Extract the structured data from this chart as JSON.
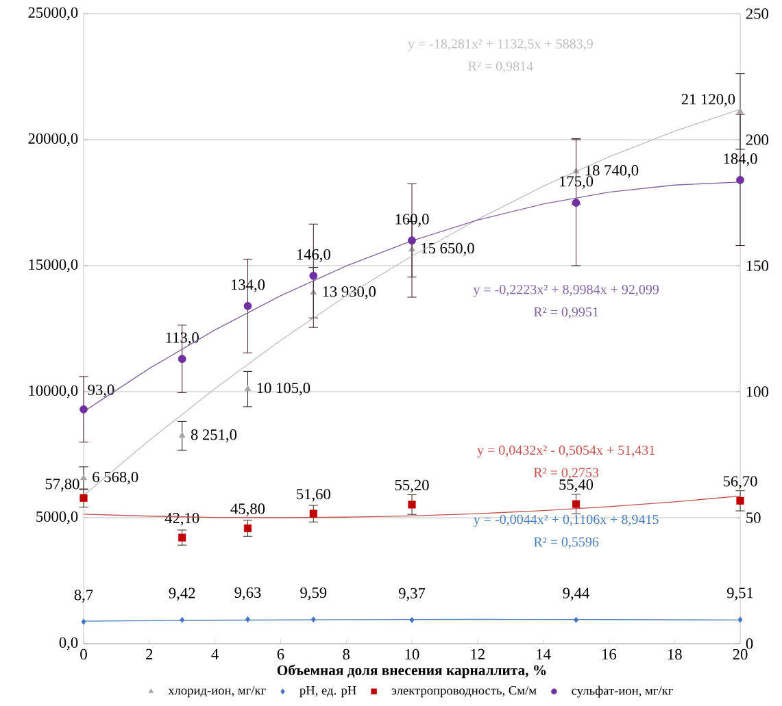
{
  "chart_data": {
    "type": "scatter",
    "xlabel": "Объемная доля внесения карналлита, %",
    "xlim": [
      0,
      20
    ],
    "xticks": [
      0,
      2,
      4,
      6,
      8,
      10,
      12,
      14,
      16,
      18,
      20
    ],
    "ylim": [
      0,
      25000
    ],
    "yticks": [
      {
        "value": 0,
        "label": "0,0"
      },
      {
        "value": 5000,
        "label": "5000,0"
      },
      {
        "value": 10000,
        "label": "10000,0"
      },
      {
        "value": 15000,
        "label": "15000,0"
      },
      {
        "value": 20000,
        "label": "20000,0"
      },
      {
        "value": 25000,
        "label": "25000,0"
      }
    ],
    "y2lim": [
      0,
      250
    ],
    "y2ticks": [
      0,
      50,
      100,
      150,
      200,
      250
    ],
    "grid": "y",
    "legend": "bottom",
    "series": [
      {
        "name": "хлорид-ион, мг/кг",
        "color": "#a5a5a5",
        "marker": "triangle",
        "x": [
          0,
          3,
          5,
          7,
          10,
          15,
          20
        ],
        "values": [
          6568,
          8251,
          10105,
          13930,
          15650,
          18740,
          21120
        ],
        "errors": [
          450,
          570,
          700,
          1000,
          1100,
          1300,
          1500
        ],
        "value_labels": [
          "6 568,0",
          "8 251,0",
          "10 105,0",
          "13 930,0",
          "15 650,0",
          "18 740,0",
          "21 120,0"
        ]
      },
      {
        "name": "pH, ед. pH",
        "color": "#4472c4",
        "marker": "diamond",
        "axis": "y2",
        "x": [
          0,
          3,
          5,
          7,
          10,
          15,
          20
        ],
        "values": [
          8.7,
          9.42,
          9.63,
          9.59,
          9.37,
          9.44,
          9.51
        ],
        "value_labels": [
          "8,7",
          "9,42",
          "9,63",
          "9,59",
          "9,37",
          "9,44",
          "9,51"
        ]
      },
      {
        "name": "электропроводность, См/м",
        "color": "#c00000",
        "marker": "square",
        "axis": "y2",
        "x": [
          0,
          3,
          5,
          7,
          10,
          15,
          20
        ],
        "values": [
          57.8,
          42.1,
          45.8,
          51.6,
          55.2,
          55.4,
          56.7
        ],
        "errors": [
          3.6,
          3,
          3.2,
          3.3,
          3.9,
          3.9,
          4
        ],
        "value_labels": [
          "57,80",
          "42,10",
          "45,80",
          "51,60",
          "55,20",
          "55,40",
          "56,70"
        ]
      },
      {
        "name": "сульфат-ион, мг/кг",
        "color": "#7030a0",
        "marker": "circle",
        "axis": "y2",
        "x": [
          0,
          3,
          5,
          7,
          10,
          15,
          20
        ],
        "values": [
          93,
          113,
          134,
          146,
          160,
          175,
          184
        ],
        "errors": [
          13,
          13.4,
          18.6,
          20.5,
          22.5,
          25,
          26
        ],
        "value_labels": [
          "93,0",
          "113,0",
          "134,0",
          "146,0",
          "160,0",
          "175,0",
          "184,0"
        ]
      },
      {
        "type": "line",
        "color": "#bfbfbf",
        "x": [
          0,
          2,
          4,
          6,
          8,
          10,
          12,
          14,
          16,
          18,
          20
        ],
        "values": [
          5884,
          8068,
          10122,
          12037,
          13804,
          15381,
          16840,
          18153,
          19319,
          20337,
          21208
        ]
      },
      {
        "type": "line",
        "color": "#8064a2",
        "axis": "y2",
        "x": [
          0,
          2,
          4,
          6,
          8,
          10,
          12,
          14,
          16,
          18,
          20
        ],
        "values": [
          92.1,
          109.2,
          124.5,
          138.1,
          149.9,
          159.9,
          168.1,
          174.5,
          179.2,
          182.0,
          183.2
        ]
      },
      {
        "type": "line",
        "color": "#c0504d",
        "axis": "y2",
        "x": [
          0,
          2,
          4,
          6,
          8,
          10,
          12,
          14,
          16,
          18,
          20
        ],
        "values": [
          51.4,
          50.6,
          50.1,
          50.0,
          50.2,
          50.7,
          51.6,
          52.8,
          54.4,
          56.3,
          58.6
        ]
      },
      {
        "type": "line",
        "color": "#4a7ebb",
        "axis": "y2",
        "x": [
          0,
          4,
          8,
          12,
          16,
          20
        ],
        "values": [
          8.94,
          9.31,
          9.54,
          9.64,
          9.58,
          9.39
        ]
      }
    ],
    "annotations": [
      "y = -18,281x² + 1132,5x + 5883,9",
      "R² = 0,9814",
      "y = -0,2223x² + 8,9984x + 92,099",
      "R² = 0,9951",
      "y = 0,0432x² - 0,5054x + 51,431",
      "R² = 0,2753",
      "y = -0,0044x² + 0,1106x + 8,9415",
      "R² = 0,5596"
    ]
  }
}
